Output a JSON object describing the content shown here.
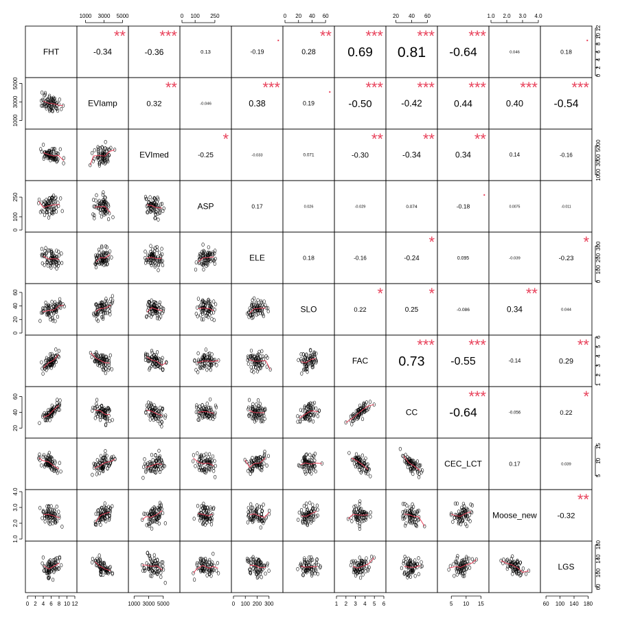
{
  "chart_data": {
    "type": "scatter",
    "title": "",
    "variables": [
      "FHT",
      "EVIamp",
      "EVImed",
      "ASP",
      "ELE",
      "SLO",
      "FAC",
      "CC",
      "CEC_LCT",
      "Moose_new",
      "LGS"
    ],
    "axis_ticks": {
      "FHT": [
        "0",
        "2",
        "4",
        "6",
        "8",
        "10",
        "12"
      ],
      "EVIamp": [
        "1000",
        "3000",
        "5000"
      ],
      "EVImed": [
        "1000",
        "3000",
        "5000"
      ],
      "ASP": [
        "0",
        "100",
        "250"
      ],
      "ELE": [
        "0",
        "100",
        "200",
        "300"
      ],
      "SLO": [
        "0",
        "20",
        "40",
        "60"
      ],
      "FAC": [
        "1",
        "2",
        "3",
        "4",
        "5",
        "6"
      ],
      "CC": [
        "20",
        "40",
        "60"
      ],
      "CEC_LCT": [
        "5",
        "10",
        "15"
      ],
      "Moose_new": [
        "1.0",
        "2.0",
        "3.0",
        "4.0"
      ],
      "LGS": [
        "60",
        "100",
        "140",
        "180"
      ]
    },
    "axis_ranges": {
      "FHT": [
        0,
        12
      ],
      "EVIamp": [
        300,
        5400
      ],
      "EVImed": [
        500,
        7000
      ],
      "ASP": [
        0,
        360
      ],
      "ELE": [
        0,
        400
      ],
      "SLO": [
        0,
        70
      ],
      "FAC": [
        1,
        6
      ],
      "CC": [
        10,
        70
      ],
      "CEC_LCT": [
        1,
        17
      ],
      "Moose_new": [
        1,
        4
      ],
      "LGS": [
        50,
        185
      ]
    },
    "correlations": [
      {
        "row": 0,
        "col": 1,
        "r": "-0.34",
        "stars": "**"
      },
      {
        "row": 0,
        "col": 2,
        "r": "-0.36",
        "stars": "***"
      },
      {
        "row": 0,
        "col": 3,
        "r": "0.13",
        "stars": ""
      },
      {
        "row": 0,
        "col": 4,
        "r": "-0.19",
        "stars": "."
      },
      {
        "row": 0,
        "col": 5,
        "r": "0.28",
        "stars": "**"
      },
      {
        "row": 0,
        "col": 6,
        "r": "0.69",
        "stars": "***"
      },
      {
        "row": 0,
        "col": 7,
        "r": "0.81",
        "stars": "***"
      },
      {
        "row": 0,
        "col": 8,
        "r": "-0.64",
        "stars": "***"
      },
      {
        "row": 0,
        "col": 9,
        "r": "0.046",
        "stars": ""
      },
      {
        "row": 0,
        "col": 10,
        "r": "0.18",
        "stars": "."
      },
      {
        "row": 1,
        "col": 2,
        "r": "0.32",
        "stars": "**"
      },
      {
        "row": 1,
        "col": 3,
        "r": "-0.046",
        "stars": ""
      },
      {
        "row": 1,
        "col": 4,
        "r": "0.38",
        "stars": "***"
      },
      {
        "row": 1,
        "col": 5,
        "r": "0.19",
        "stars": "."
      },
      {
        "row": 1,
        "col": 6,
        "r": "-0.50",
        "stars": "***"
      },
      {
        "row": 1,
        "col": 7,
        "r": "-0.42",
        "stars": "***"
      },
      {
        "row": 1,
        "col": 8,
        "r": "0.44",
        "stars": "***"
      },
      {
        "row": 1,
        "col": 9,
        "r": "0.40",
        "stars": "***"
      },
      {
        "row": 1,
        "col": 10,
        "r": "-0.54",
        "stars": "***"
      },
      {
        "row": 2,
        "col": 3,
        "r": "-0.25",
        "stars": "*"
      },
      {
        "row": 2,
        "col": 4,
        "r": "-0.033",
        "stars": ""
      },
      {
        "row": 2,
        "col": 5,
        "r": "0.071",
        "stars": ""
      },
      {
        "row": 2,
        "col": 6,
        "r": "-0.30",
        "stars": "**"
      },
      {
        "row": 2,
        "col": 7,
        "r": "-0.34",
        "stars": "**"
      },
      {
        "row": 2,
        "col": 8,
        "r": "0.34",
        "stars": "**"
      },
      {
        "row": 2,
        "col": 9,
        "r": "0.14",
        "stars": ""
      },
      {
        "row": 2,
        "col": 10,
        "r": "-0.16",
        "stars": ""
      },
      {
        "row": 3,
        "col": 4,
        "r": "0.17",
        "stars": ""
      },
      {
        "row": 3,
        "col": 5,
        "r": "0.026",
        "stars": ""
      },
      {
        "row": 3,
        "col": 6,
        "r": "-0.029",
        "stars": ""
      },
      {
        "row": 3,
        "col": 7,
        "r": "0.074",
        "stars": ""
      },
      {
        "row": 3,
        "col": 8,
        "r": "-0.18",
        "stars": "."
      },
      {
        "row": 3,
        "col": 9,
        "r": "0.0075",
        "stars": ""
      },
      {
        "row": 3,
        "col": 10,
        "r": "-0.011",
        "stars": ""
      },
      {
        "row": 4,
        "col": 5,
        "r": "0.18",
        "stars": ""
      },
      {
        "row": 4,
        "col": 6,
        "r": "-0.16",
        "stars": ""
      },
      {
        "row": 4,
        "col": 7,
        "r": "-0.24",
        "stars": "*"
      },
      {
        "row": 4,
        "col": 8,
        "r": "0.095",
        "stars": ""
      },
      {
        "row": 4,
        "col": 9,
        "r": "-0.039",
        "stars": ""
      },
      {
        "row": 4,
        "col": 10,
        "r": "-0.23",
        "stars": "*"
      },
      {
        "row": 5,
        "col": 6,
        "r": "0.22",
        "stars": "*"
      },
      {
        "row": 5,
        "col": 7,
        "r": "0.25",
        "stars": "*"
      },
      {
        "row": 5,
        "col": 8,
        "r": "-0.086",
        "stars": ""
      },
      {
        "row": 5,
        "col": 9,
        "r": "0.34",
        "stars": "**"
      },
      {
        "row": 5,
        "col": 10,
        "r": "0.044",
        "stars": ""
      },
      {
        "row": 6,
        "col": 7,
        "r": "0.73",
        "stars": "***"
      },
      {
        "row": 6,
        "col": 8,
        "r": "-0.55",
        "stars": "***"
      },
      {
        "row": 6,
        "col": 9,
        "r": "-0.14",
        "stars": ""
      },
      {
        "row": 6,
        "col": 10,
        "r": "0.29",
        "stars": "**"
      },
      {
        "row": 7,
        "col": 8,
        "r": "-0.64",
        "stars": "***"
      },
      {
        "row": 7,
        "col": 9,
        "r": "-0.056",
        "stars": ""
      },
      {
        "row": 7,
        "col": 10,
        "r": "0.22",
        "stars": "*"
      },
      {
        "row": 8,
        "col": 9,
        "r": "0.17",
        "stars": ""
      },
      {
        "row": 8,
        "col": 10,
        "r": "0.039",
        "stars": ""
      },
      {
        "row": 9,
        "col": 10,
        "r": "-0.32",
        "stars": "**"
      }
    ],
    "colors": {
      "points": "#000000",
      "smoother": "#e8415a",
      "stars": "#e8415a"
    },
    "grid": false
  }
}
